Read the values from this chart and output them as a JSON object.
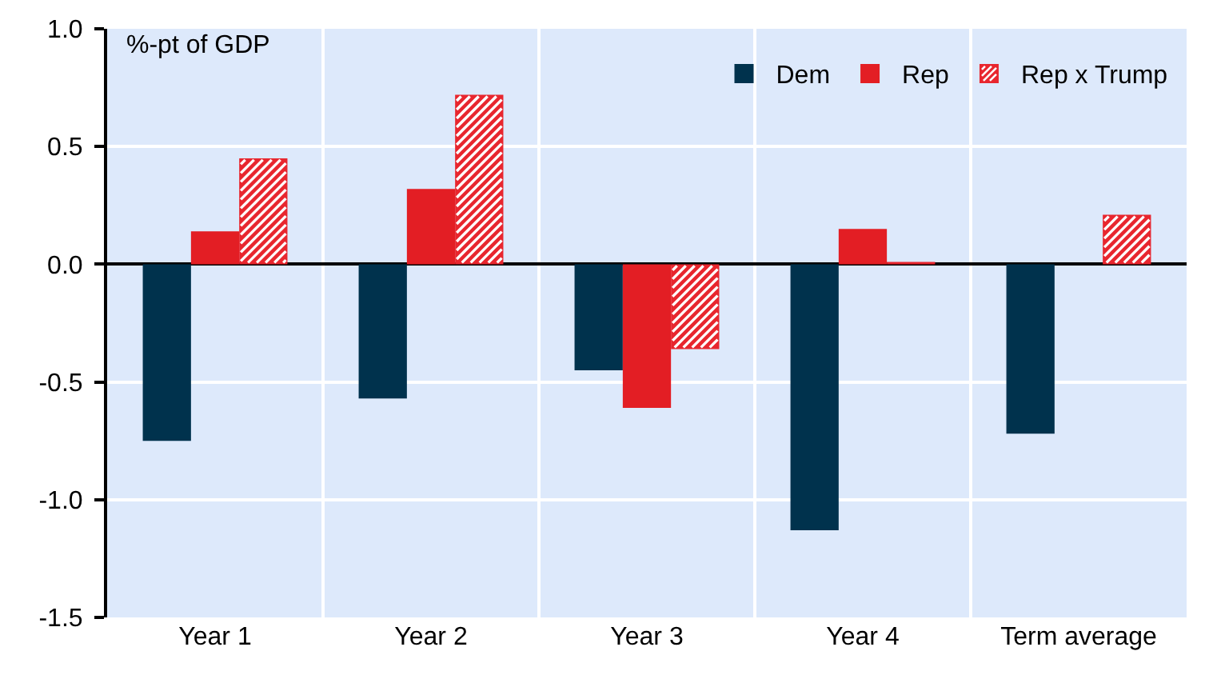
{
  "chart_data": {
    "type": "bar",
    "categories": [
      "Year 1",
      "Year 2",
      "Year 3",
      "Year 4",
      "Term average"
    ],
    "series": [
      {
        "name": "Dem",
        "color": "#00324d",
        "values": [
          -0.75,
          -0.57,
          -0.45,
          -1.13,
          -0.72
        ]
      },
      {
        "name": "Rep",
        "color": "#e31e24",
        "values": [
          0.14,
          0.32,
          -0.61,
          0.15,
          null
        ]
      },
      {
        "name": "Rep x Trump",
        "color": "#e8262e",
        "values": [
          0.45,
          0.72,
          -0.36,
          0.01,
          0.21
        ]
      }
    ],
    "ylim": [
      -1.5,
      1.0
    ],
    "yticks": [
      {
        "value": 1.0,
        "label": "1.0"
      },
      0.5,
      {
        "value": 0,
        "label": "0.0"
      },
      -0.5,
      {
        "value": -1.0,
        "label": "-1.0"
      },
      -1.5
    ],
    "annotations": [
      "%-pt of GDP"
    ],
    "grid": true,
    "legend": "top right"
  }
}
